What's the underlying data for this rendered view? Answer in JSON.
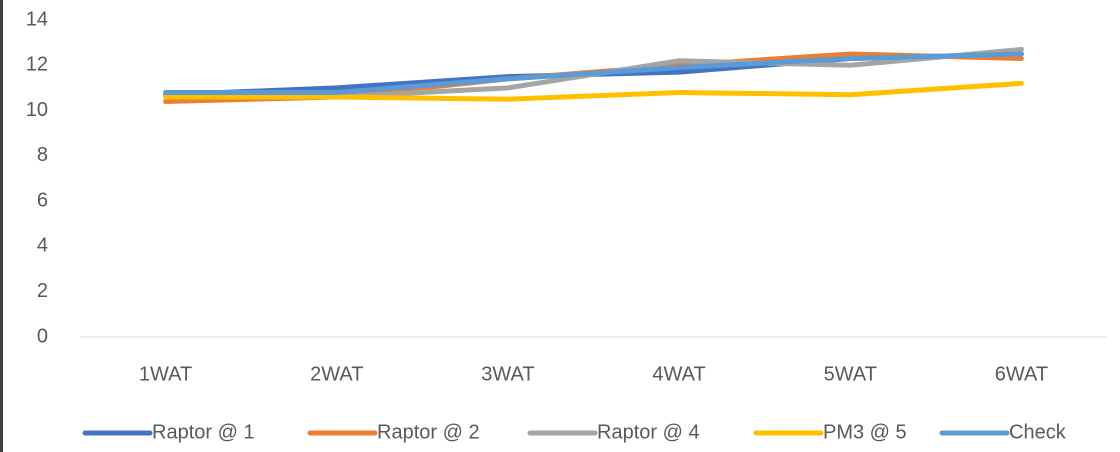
{
  "chart_data": {
    "type": "line",
    "categories": [
      "1WAT",
      "2WAT",
      "3WAT",
      "4WAT",
      "5WAT",
      "6WAT"
    ],
    "series": [
      {
        "name": "Raptor @ 1",
        "color": "#4472c4",
        "values": [
          10.7,
          11.0,
          11.5,
          11.7,
          12.3,
          12.5
        ]
      },
      {
        "name": "Raptor @ 2",
        "color": "#ed7d31",
        "values": [
          10.4,
          10.6,
          11.4,
          12.0,
          12.5,
          12.3
        ]
      },
      {
        "name": "Raptor @ 4",
        "color": "#a5a5a5",
        "values": [
          10.6,
          10.6,
          11.0,
          12.2,
          12.0,
          12.7
        ]
      },
      {
        "name": "PM3 @ 5",
        "color": "#ffc000",
        "values": [
          10.6,
          10.6,
          10.5,
          10.8,
          10.7,
          11.2
        ]
      },
      {
        "name": "Check",
        "color": "#5b9bd5",
        "values": [
          10.8,
          10.8,
          11.4,
          11.9,
          12.3,
          12.5
        ]
      }
    ],
    "ylim": [
      0,
      14
    ],
    "yticks": [
      0,
      2,
      4,
      6,
      8,
      10,
      12,
      14
    ],
    "grid": false,
    "legend": "bottom"
  }
}
